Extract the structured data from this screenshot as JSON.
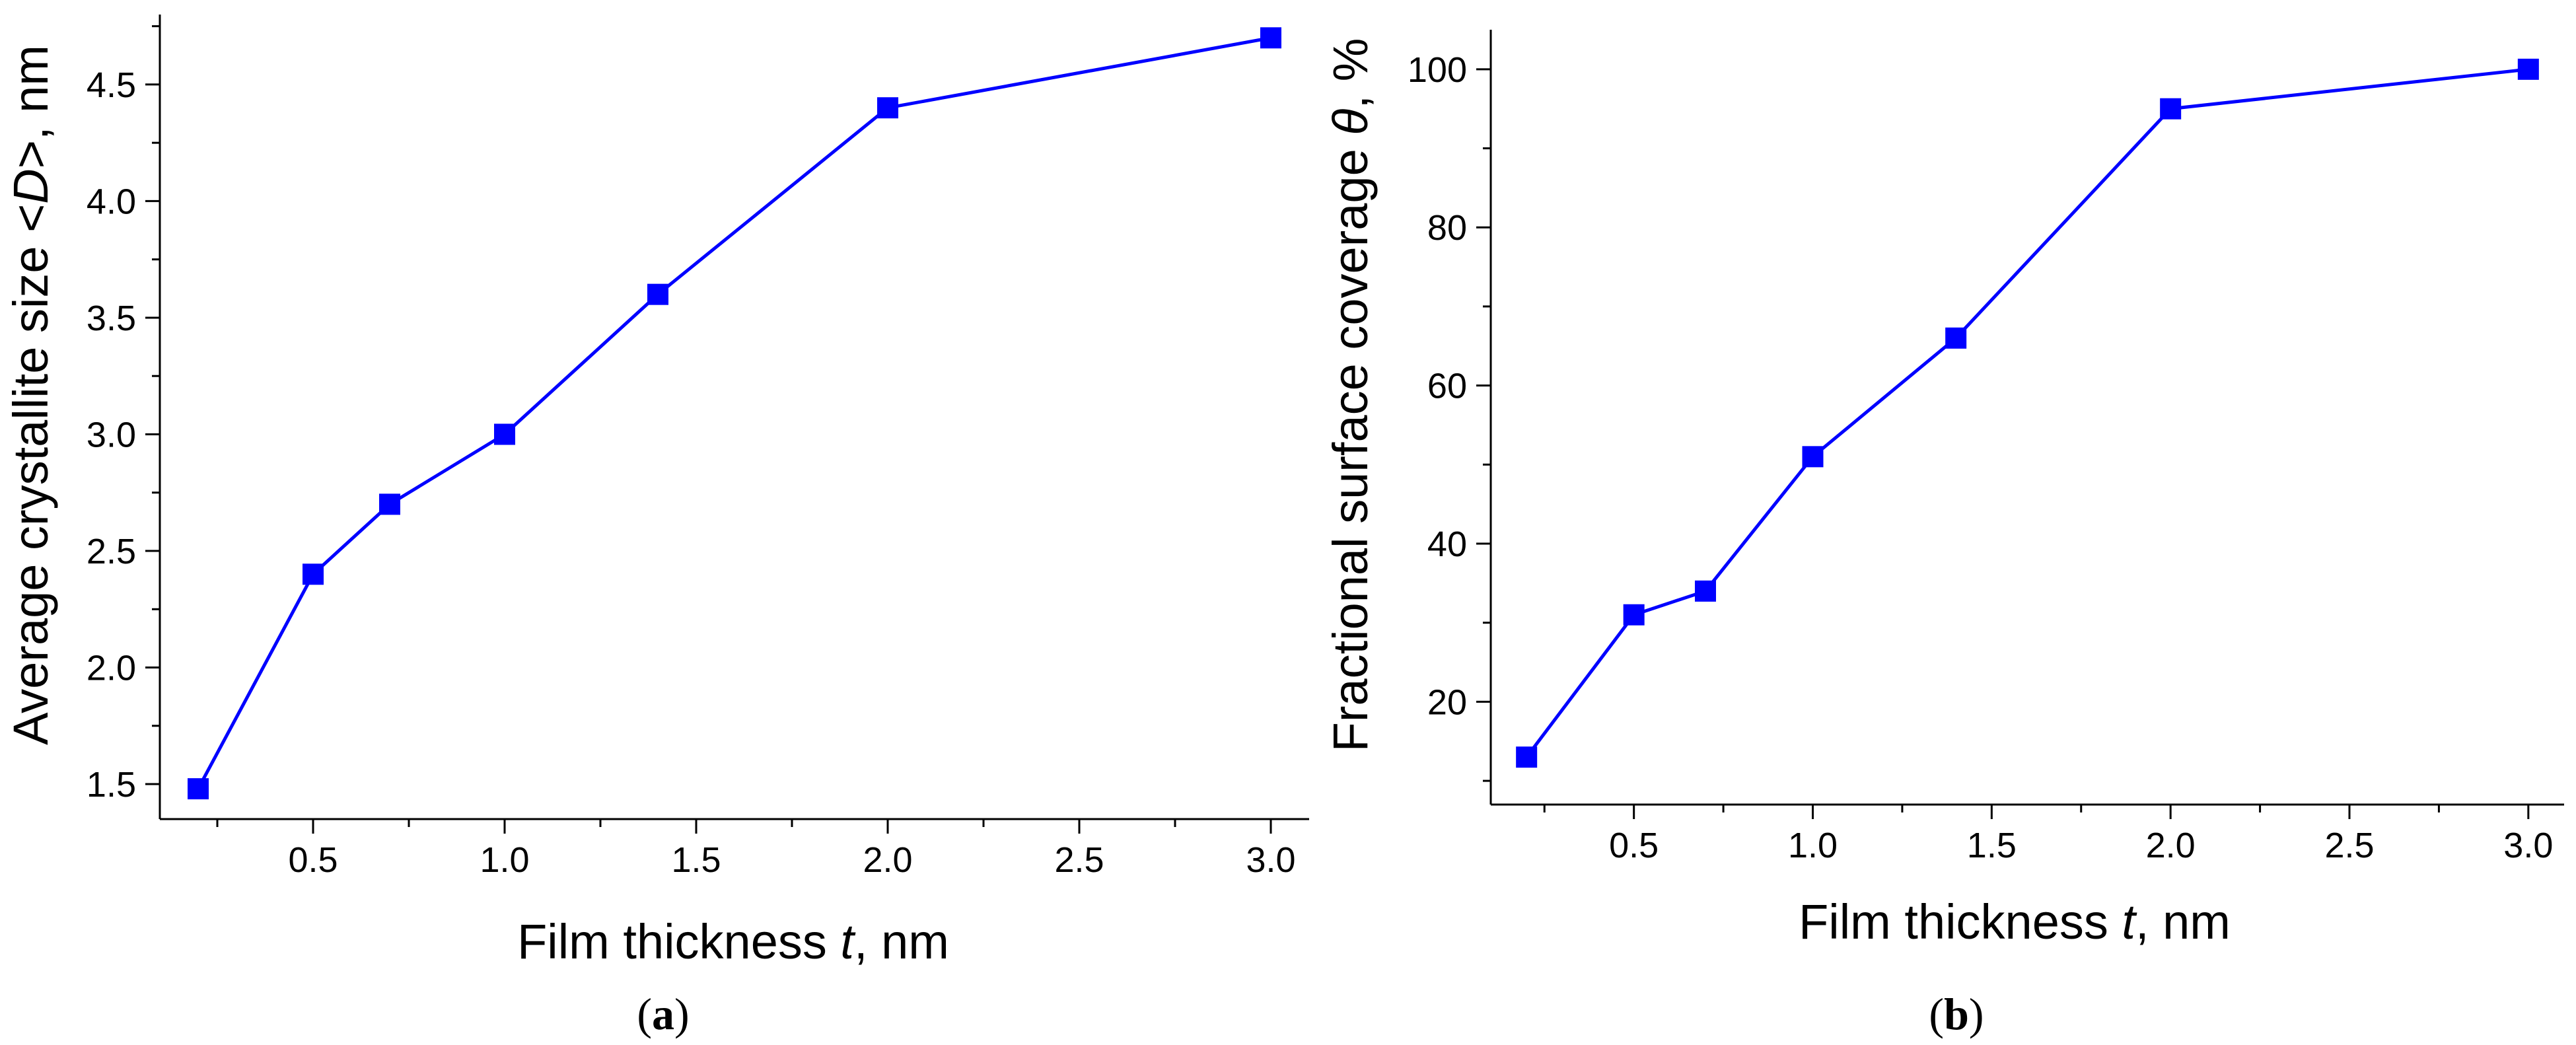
{
  "chart_data": [
    {
      "type": "line",
      "panel_label": "a",
      "xlabel_prefix": "Film thickness ",
      "xlabel_var": "t",
      "xlabel_suffix": ", nm",
      "ylabel_prefix": "Average crystallite size <",
      "ylabel_var": "D",
      "ylabel_suffix": ">, nm",
      "xlim": [
        0.1,
        3.1
      ],
      "ylim": [
        1.35,
        4.8
      ],
      "x_ticks": [
        0.5,
        1.0,
        1.5,
        2.0,
        2.5,
        3.0
      ],
      "x_tick_labels": [
        "0.5",
        "1.0",
        "1.5",
        "2.0",
        "2.5",
        "3.0"
      ],
      "y_ticks": [
        1.5,
        2.0,
        2.5,
        3.0,
        3.5,
        4.0,
        4.5
      ],
      "y_tick_labels": [
        "1.5",
        "2.0",
        "2.5",
        "3.0",
        "3.5",
        "4.0",
        "4.5"
      ],
      "grid": false,
      "series": [
        {
          "color": "#0000ff",
          "marker": "square",
          "x": [
            0.2,
            0.5,
            0.7,
            1.0,
            1.4,
            2.0,
            3.0
          ],
          "y": [
            1.48,
            2.4,
            2.7,
            3.0,
            3.6,
            4.4,
            4.7
          ]
        }
      ]
    },
    {
      "type": "line",
      "panel_label": "b",
      "xlabel_prefix": "Film thickness ",
      "xlabel_var": "t",
      "xlabel_suffix": ", nm",
      "ylabel_prefix": "Fractional surface coverage ",
      "ylabel_var": "θ",
      "ylabel_suffix": ", %",
      "xlim": [
        0.1,
        3.1
      ],
      "ylim": [
        7,
        105
      ],
      "x_ticks": [
        0.5,
        1.0,
        1.5,
        2.0,
        2.5,
        3.0
      ],
      "x_tick_labels": [
        "0.5",
        "1.0",
        "1.5",
        "2.0",
        "2.5",
        "3.0"
      ],
      "y_ticks": [
        20,
        40,
        60,
        80,
        100
      ],
      "y_tick_labels": [
        "20",
        "40",
        "60",
        "80",
        "100"
      ],
      "grid": false,
      "series": [
        {
          "color": "#0000ff",
          "marker": "square",
          "x": [
            0.2,
            0.5,
            0.7,
            1.0,
            1.4,
            2.0,
            3.0
          ],
          "y": [
            13,
            31,
            34,
            51,
            66,
            95,
            100
          ]
        }
      ]
    }
  ]
}
